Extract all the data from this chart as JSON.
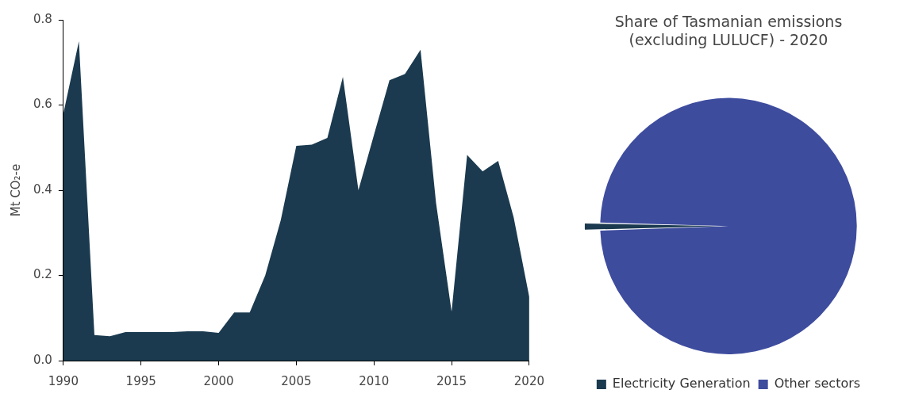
{
  "chart_data": [
    {
      "type": "area",
      "ylabel": "Mt CO₂-e",
      "x": [
        1990,
        1991,
        1992,
        1993,
        1994,
        1995,
        1996,
        1997,
        1998,
        1999,
        2000,
        2001,
        2002,
        2003,
        2004,
        2005,
        2006,
        2007,
        2008,
        2009,
        2010,
        2011,
        2012,
        2013,
        2014,
        2015,
        2016,
        2017,
        2018,
        2019,
        2020
      ],
      "series": [
        {
          "color": "#1b3a4f",
          "values": [
            0.58,
            0.75,
            0.06,
            0.057,
            0.067,
            0.067,
            0.067,
            0.067,
            0.069,
            0.069,
            0.065,
            0.113,
            0.113,
            0.2,
            0.33,
            0.504,
            0.507,
            0.523,
            0.666,
            0.4,
            0.53,
            0.658,
            0.673,
            0.73,
            0.37,
            0.115,
            0.483,
            0.444,
            0.469,
            0.336,
            0.15
          ]
        }
      ],
      "xlim": [
        1990,
        2020
      ],
      "xticks": [
        1990,
        1995,
        2000,
        2005,
        2010,
        2015,
        2020
      ],
      "ylim": [
        0,
        0.8
      ],
      "yticks": [
        {
          "value": 0,
          "label": "0.0"
        },
        0.2,
        0.4,
        0.6,
        0.8
      ],
      "grid": false,
      "legend": false
    },
    {
      "type": "pie",
      "title": "Share of Tasmanian emissions (excluding LULUCF) - 2020",
      "categories": [
        "Electricity Generation",
        "Other sectors"
      ],
      "values": [
        1,
        99
      ],
      "colors": [
        "#1b3a4f",
        "#3e4c9e"
      ],
      "legend": "bottom"
    }
  ]
}
